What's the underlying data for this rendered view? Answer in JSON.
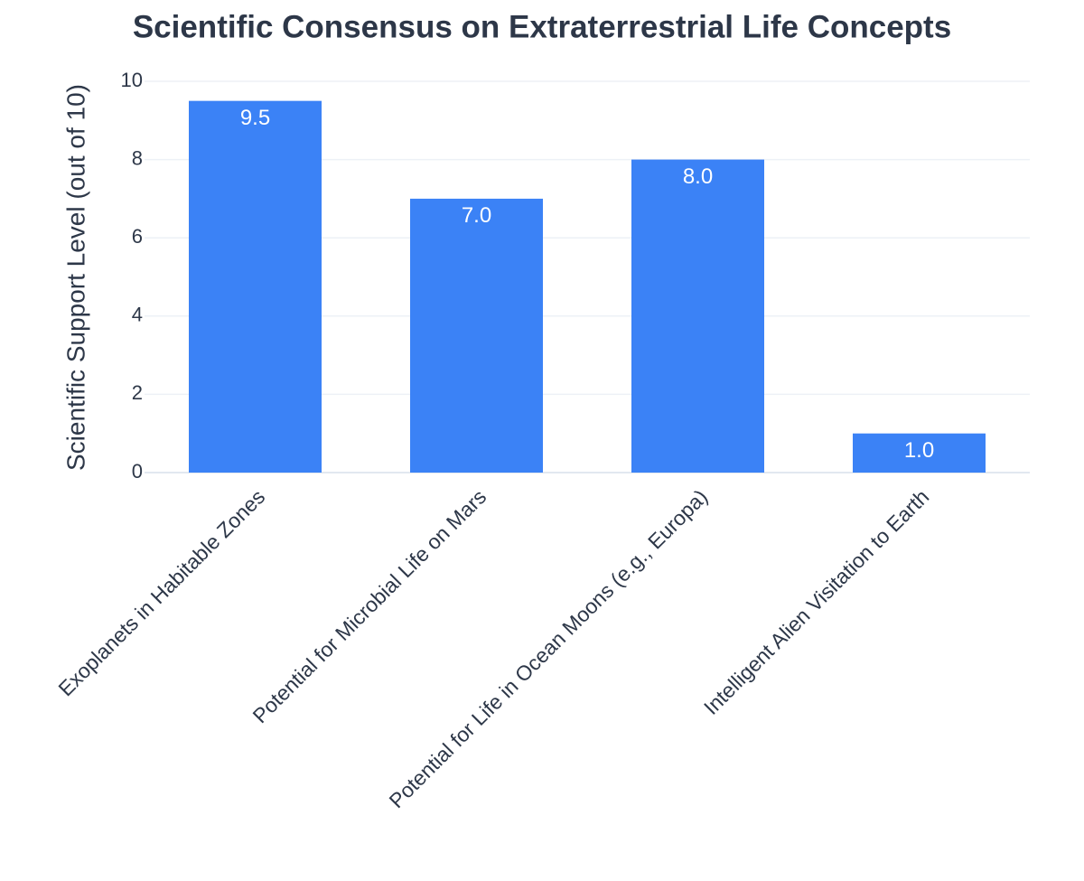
{
  "chart_data": {
    "type": "bar",
    "title": "Scientific Consensus on Extraterrestrial Life Concepts",
    "y_label": "Scientific Support Level (out of 10)",
    "categories": [
      "Exoplanets in Habitable Zones",
      "Potential for Microbial Life on Mars",
      "Potential for Life in Ocean Moons (e.g., Europa)",
      "Intelligent Alien Visitation to Earth"
    ],
    "values": [
      9.5,
      7,
      8,
      1
    ],
    "value_labels": [
      "9.5",
      "7.0",
      "8.0",
      "1.0"
    ],
    "color": "#3b82f6",
    "ylim": [
      0,
      10
    ],
    "yticks": [
      0,
      2,
      4,
      6,
      8,
      10
    ],
    "grid": true
  }
}
